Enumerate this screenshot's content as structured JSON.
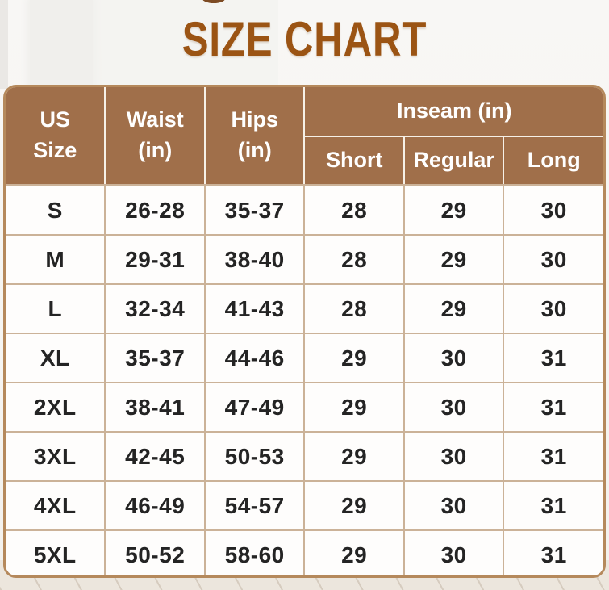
{
  "title": "SIZE CHART",
  "table": {
    "header": {
      "us_size": "US\nSize",
      "waist": "Waist\n(in)",
      "hips": "Hips\n(in)",
      "inseam": "Inseam (in)",
      "short": "Short",
      "regular": "Regular",
      "long": "Long"
    },
    "rows": [
      {
        "size": "S",
        "waist": "26-28",
        "hips": "35-37",
        "short": "28",
        "regular": "29",
        "long": "30"
      },
      {
        "size": "M",
        "waist": "29-31",
        "hips": "38-40",
        "short": "28",
        "regular": "29",
        "long": "30"
      },
      {
        "size": "L",
        "waist": "32-34",
        "hips": "41-43",
        "short": "28",
        "regular": "29",
        "long": "30"
      },
      {
        "size": "XL",
        "waist": "35-37",
        "hips": "44-46",
        "short": "29",
        "regular": "30",
        "long": "31"
      },
      {
        "size": "2XL",
        "waist": "38-41",
        "hips": "47-49",
        "short": "29",
        "regular": "30",
        "long": "31"
      },
      {
        "size": "3XL",
        "waist": "42-45",
        "hips": "50-53",
        "short": "29",
        "regular": "30",
        "long": "31"
      },
      {
        "size": "4XL",
        "waist": "46-49",
        "hips": "54-57",
        "short": "29",
        "regular": "30",
        "long": "31"
      },
      {
        "size": "5XL",
        "waist": "50-52",
        "hips": "58-60",
        "short": "29",
        "regular": "30",
        "long": "31"
      }
    ]
  },
  "chart_data": {
    "type": "table",
    "title": "SIZE CHART",
    "columns": [
      "US Size",
      "Waist (in)",
      "Hips (in)",
      "Inseam (in) Short",
      "Inseam (in) Regular",
      "Inseam (in) Long"
    ],
    "rows": [
      [
        "S",
        "26-28",
        "35-37",
        "28",
        "29",
        "30"
      ],
      [
        "M",
        "29-31",
        "38-40",
        "28",
        "29",
        "30"
      ],
      [
        "L",
        "32-34",
        "41-43",
        "28",
        "29",
        "30"
      ],
      [
        "XL",
        "35-37",
        "44-46",
        "29",
        "30",
        "31"
      ],
      [
        "2XL",
        "38-41",
        "47-49",
        "29",
        "30",
        "31"
      ],
      [
        "3XL",
        "42-45",
        "50-53",
        "29",
        "30",
        "31"
      ],
      [
        "4XL",
        "46-49",
        "54-57",
        "29",
        "30",
        "31"
      ],
      [
        "5XL",
        "50-52",
        "58-60",
        "29",
        "30",
        "31"
      ]
    ]
  },
  "colors": {
    "title_text": "#9b5414",
    "header_bg": "#a06f4a",
    "header_text": "#ffffff",
    "header_divider": "#f6f0e7",
    "grid_line": "#cbb298",
    "outer_border": "#b5895c",
    "body_text": "#242424",
    "cell_bg": "#fefdfc",
    "floor_bg": "#ece6dd"
  }
}
